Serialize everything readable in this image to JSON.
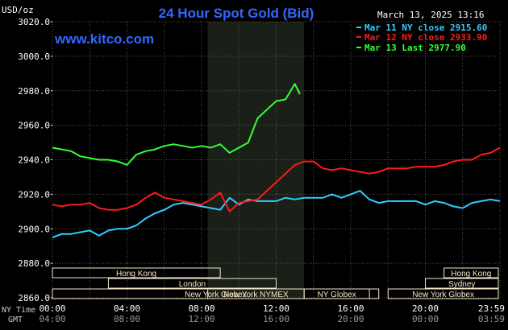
{
  "header": {
    "unit": "USD/oz",
    "title": "24 Hour Spot Gold (Bid)",
    "datetime": "March 13, 2025 13:16",
    "watermark": "www.kitco.com"
  },
  "legend": [
    {
      "text": "Mar 11 NY close 2915.60",
      "color": "#33ccff"
    },
    {
      "text": "Mar 12 NY close 2933.90",
      "color": "#ff1a1a"
    },
    {
      "text": "Mar 13 Last 2977.90",
      "color": "#33ff33"
    }
  ],
  "axis_labels": {
    "ny_time": "NY Time",
    "gmt": "GMT"
  },
  "colors": {
    "background": "#000000",
    "grid": "#555555",
    "title": "#3366ff",
    "session_box_fill": "#f5e6c8",
    "session_box_text": "#000000",
    "highlight_band": "#1a1f18"
  },
  "sessions": [
    {
      "name": "Hong Kong",
      "start": -2.0,
      "end": 9.0,
      "row": 0
    },
    {
      "name": "London",
      "start": 3.0,
      "end": 12.0,
      "row": 1
    },
    {
      "name": "New York Globex",
      "start": -2.0,
      "end": 17.5,
      "row": 2
    },
    {
      "name": "New York NYMEX",
      "start": 8.33,
      "end": 13.5,
      "row": 2
    },
    {
      "name": "NY Globex",
      "start": 13.5,
      "end": 17.0,
      "row": 2
    },
    {
      "name": "Hong Kong",
      "start": 21.0,
      "end": 26.0,
      "row": 0
    },
    {
      "name": "Sydney",
      "start": 20.0,
      "end": 26.0,
      "row": 1
    },
    {
      "name": "New York Globex",
      "start": 18.0,
      "end": 26.0,
      "row": 2
    }
  ],
  "chart_data": {
    "type": "line",
    "ylim": [
      2860,
      3020
    ],
    "xlim": [
      0,
      24
    ],
    "yticks": [
      "3020.0",
      "3000.0",
      "2980.0",
      "2960.0",
      "2940.0",
      "2920.0",
      "2900.0",
      "2880.0",
      "2860.0"
    ],
    "ytick_values": [
      3020,
      3000,
      2980,
      2960,
      2940,
      2920,
      2900,
      2880,
      2860
    ],
    "xticks_ny": [
      "00:00",
      "04:00",
      "08:00",
      "12:00",
      "16:00",
      "20:00",
      "23:59"
    ],
    "xticks_gmt": [
      "04:00",
      "08:00",
      "12:00",
      "16:00",
      "20:00",
      "00:00",
      "03:59"
    ],
    "xtick_values": [
      0,
      4,
      8,
      12,
      16,
      20,
      24
    ],
    "highlight_range": [
      8.33,
      13.5
    ],
    "grid": true,
    "series": [
      {
        "name": "Mar 11 NY close 2915.60",
        "color": "#33ccff",
        "x": [
          0,
          0.5,
          1,
          1.5,
          2,
          2.5,
          3,
          3.5,
          4,
          4.5,
          5,
          5.5,
          6,
          6.5,
          7,
          7.5,
          8,
          8.5,
          9,
          9.5,
          10,
          10.5,
          11,
          11.5,
          12,
          12.5,
          13,
          13.5,
          14,
          14.5,
          15,
          15.5,
          16,
          16.5,
          17,
          17.5,
          18,
          18.5,
          19,
          19.5,
          20,
          20.5,
          21,
          21.5,
          22,
          22.5,
          23,
          23.5,
          24
        ],
        "y": [
          2895,
          2897,
          2897,
          2898,
          2899,
          2896,
          2899,
          2900,
          2900,
          2902,
          2906,
          2909,
          2911,
          2914,
          2915,
          2914,
          2913,
          2912,
          2911,
          2918,
          2914,
          2917,
          2916,
          2916,
          2916,
          2918,
          2917,
          2918,
          2918,
          2918,
          2920,
          2918,
          2920,
          2922,
          2917,
          2915,
          2916,
          2916,
          2916,
          2916,
          2914,
          2916,
          2915,
          2913,
          2912,
          2915,
          2916,
          2917,
          2916
        ]
      },
      {
        "name": "Mar 12 NY close 2933.90",
        "color": "#ff1a1a",
        "x": [
          0,
          0.5,
          1,
          1.5,
          2,
          2.5,
          3,
          3.5,
          4,
          4.5,
          5,
          5.5,
          6,
          6.5,
          7,
          7.5,
          8,
          8.5,
          9,
          9.5,
          10,
          10.5,
          11,
          11.5,
          12,
          12.5,
          13,
          13.5,
          14,
          14.5,
          15,
          15.5,
          16,
          16.5,
          17,
          17.5,
          18,
          18.5,
          19,
          19.5,
          20,
          20.5,
          21,
          21.5,
          22,
          22.5,
          23,
          23.5,
          24
        ],
        "y": [
          2914,
          2913,
          2914,
          2914,
          2915,
          2912,
          2911,
          2911,
          2912,
          2914,
          2918,
          2921,
          2918,
          2917,
          2916,
          2915,
          2914,
          2917,
          2921,
          2910,
          2915,
          2916,
          2917,
          2922,
          2927,
          2932,
          2937,
          2939,
          2939,
          2935,
          2934,
          2935,
          2934,
          2933,
          2932,
          2933,
          2935,
          2935,
          2935,
          2936,
          2936,
          2936,
          2937,
          2939,
          2940,
          2940,
          2943,
          2944,
          2947
        ]
      },
      {
        "name": "Mar 13 Last 2977.90",
        "color": "#33ff33",
        "x": [
          0,
          0.5,
          1,
          1.5,
          2,
          2.5,
          3,
          3.5,
          4,
          4.5,
          5,
          5.5,
          6,
          6.5,
          7,
          7.5,
          8,
          8.5,
          9,
          9.5,
          10,
          10.5,
          11,
          11.5,
          12,
          12.5,
          13,
          13.27
        ],
        "y": [
          2947,
          2946,
          2945,
          2942,
          2941,
          2940,
          2940,
          2939,
          2937,
          2943,
          2945,
          2946,
          2948,
          2949,
          2948,
          2947,
          2948,
          2947,
          2949,
          2944,
          2947,
          2950,
          2964,
          2969,
          2974,
          2975,
          2984,
          2978
        ]
      }
    ]
  }
}
